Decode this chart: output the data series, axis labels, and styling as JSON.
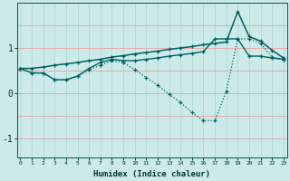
{
  "xlabel": "Humidex (Indice chaleur)",
  "x": [
    0,
    1,
    2,
    3,
    4,
    5,
    6,
    7,
    8,
    9,
    10,
    11,
    12,
    13,
    14,
    15,
    16,
    17,
    18,
    19,
    20,
    21,
    22,
    23
  ],
  "line_top": [
    0.55,
    0.55,
    0.58,
    0.62,
    0.65,
    0.68,
    0.72,
    0.75,
    0.8,
    0.83,
    0.87,
    0.9,
    0.93,
    0.97,
    1.0,
    1.03,
    1.07,
    1.1,
    1.13,
    1.8,
    1.25,
    1.15,
    0.95,
    0.78
  ],
  "line_mid": [
    0.55,
    0.45,
    0.45,
    0.3,
    0.3,
    0.38,
    0.55,
    0.68,
    0.75,
    0.72,
    0.72,
    0.75,
    0.78,
    0.82,
    0.85,
    0.88,
    0.92,
    1.2,
    1.2,
    1.2,
    0.82,
    0.82,
    0.78,
    0.75
  ],
  "line_dip": [
    0.55,
    0.45,
    0.45,
    0.3,
    0.3,
    0.38,
    0.52,
    0.62,
    0.72,
    0.68,
    0.52,
    0.35,
    0.18,
    -0.02,
    -0.2,
    -0.42,
    -0.6,
    -0.6,
    0.05,
    1.2,
    1.2,
    1.1,
    0.8,
    0.75
  ],
  "bg_color": "#cceaea",
  "line_color": "#006060",
  "grid_color_h": "#e8a0a0",
  "grid_color_v": "#b0d8d8",
  "yticks": [
    -1,
    0,
    1
  ],
  "ylim": [
    -1.4,
    2.0
  ],
  "xlim": [
    -0.3,
    23.3
  ]
}
